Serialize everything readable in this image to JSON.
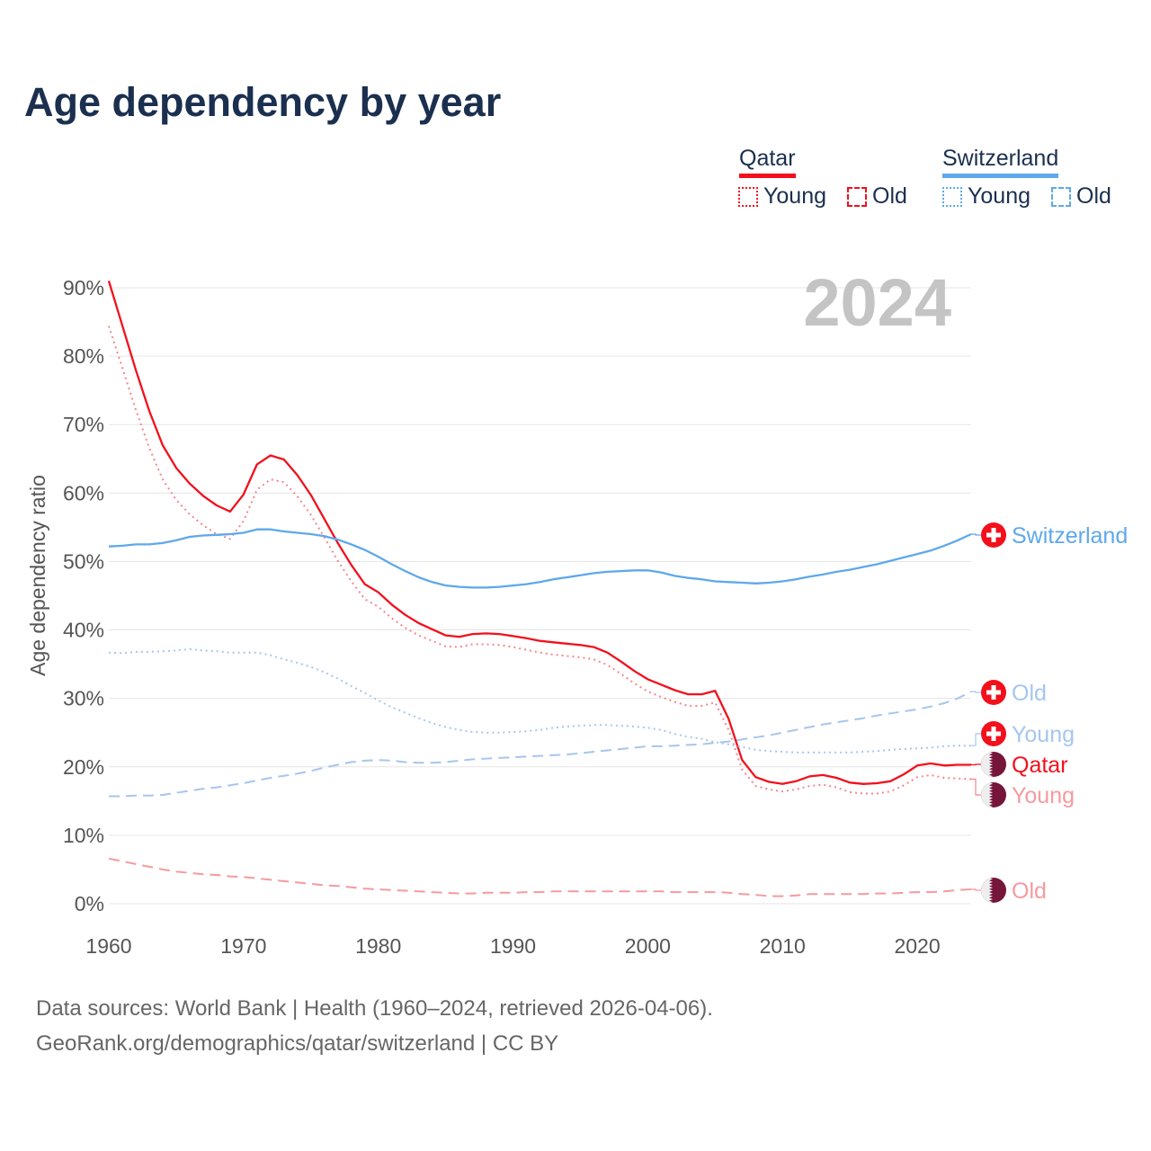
{
  "title": "Age dependency by year",
  "legend": {
    "countries": [
      {
        "name": "Qatar",
        "color": "#f2101c",
        "young_label": "Young",
        "old_label": "Old"
      },
      {
        "name": "Switzerland",
        "color": "#5ea8ec",
        "young_label": "Young",
        "old_label": "Old"
      }
    ]
  },
  "year_display": "2024",
  "footer": {
    "line1": "Data sources: World Bank | Health (1960–2024, retrieved 2026-04-06).",
    "line2": "GeoRank.org/demographics/qatar/switzerland | CC BY"
  },
  "end_labels": {
    "switzerland_total": "Switzerland",
    "switzerland_old": "Old",
    "switzerland_young": "Young",
    "qatar_total": "Qatar",
    "qatar_young": "Young",
    "qatar_old": "Old"
  },
  "chart_data": {
    "type": "line",
    "title": "Age dependency by year",
    "xlabel": "",
    "ylabel": "Age dependency ratio",
    "xlim": [
      1960,
      2024
    ],
    "ylim": [
      0,
      90
    ],
    "x_ticks": [
      "1960",
      "1970",
      "1980",
      "1990",
      "2000",
      "2010",
      "2020"
    ],
    "y_ticks": [
      "0%",
      "10%",
      "20%",
      "30%",
      "40%",
      "50%",
      "60%",
      "70%",
      "80%",
      "90%"
    ],
    "grid": true,
    "legend_position": "top-right",
    "x_start": 1960,
    "series": [
      {
        "name": "Qatar",
        "key": "qatar_total",
        "color": "#f2101c",
        "style": "solid",
        "values": [
          91.0,
          84.5,
          78.0,
          72.0,
          67.0,
          63.7,
          61.4,
          59.6,
          58.2,
          57.3,
          59.8,
          64.2,
          65.5,
          64.9,
          62.6,
          59.7,
          56.2,
          52.7,
          49.5,
          46.7,
          45.5,
          43.7,
          42.2,
          41.0,
          40.1,
          39.2,
          39.0,
          39.4,
          39.5,
          39.4,
          39.1,
          38.8,
          38.4,
          38.2,
          38.0,
          37.8,
          37.5,
          36.7,
          35.4,
          34.0,
          32.8,
          32.0,
          31.2,
          30.6,
          30.6,
          31.1,
          27.0,
          21.0,
          18.5,
          17.8,
          17.5,
          17.9,
          18.6,
          18.8,
          18.4,
          17.7,
          17.5,
          17.6,
          17.9,
          18.9,
          20.2,
          20.5,
          20.2,
          20.3,
          20.3
        ]
      },
      {
        "name": "Qatar Young",
        "key": "qatar_young",
        "color": "#f4858e",
        "style": "dotted",
        "values": [
          84.4,
          78.3,
          72.2,
          66.6,
          62.0,
          59.0,
          56.9,
          55.3,
          54.0,
          53.3,
          55.9,
          60.5,
          62.0,
          61.6,
          59.5,
          56.8,
          53.5,
          50.1,
          47.1,
          44.5,
          43.4,
          41.7,
          40.3,
          39.2,
          38.4,
          37.6,
          37.5,
          37.9,
          37.9,
          37.8,
          37.5,
          37.1,
          36.7,
          36.4,
          36.2,
          36.0,
          35.7,
          34.9,
          33.6,
          32.2,
          31.0,
          30.2,
          29.5,
          28.9,
          28.9,
          29.4,
          25.4,
          19.6,
          17.2,
          16.7,
          16.4,
          16.7,
          17.2,
          17.4,
          17.0,
          16.3,
          16.1,
          16.1,
          16.4,
          17.3,
          18.5,
          18.8,
          18.4,
          18.3,
          18.2
        ]
      },
      {
        "name": "Qatar Old",
        "key": "qatar_old",
        "color": "#f59a9f",
        "style": "dashed",
        "values": [
          6.6,
          6.2,
          5.8,
          5.4,
          5.0,
          4.7,
          4.5,
          4.3,
          4.2,
          4.0,
          3.9,
          3.7,
          3.5,
          3.3,
          3.1,
          2.9,
          2.7,
          2.6,
          2.4,
          2.2,
          2.1,
          2.0,
          1.9,
          1.8,
          1.7,
          1.6,
          1.5,
          1.5,
          1.6,
          1.6,
          1.6,
          1.7,
          1.7,
          1.8,
          1.8,
          1.8,
          1.8,
          1.8,
          1.8,
          1.8,
          1.8,
          1.8,
          1.7,
          1.7,
          1.7,
          1.7,
          1.6,
          1.4,
          1.3,
          1.1,
          1.1,
          1.2,
          1.4,
          1.4,
          1.4,
          1.4,
          1.4,
          1.5,
          1.5,
          1.6,
          1.7,
          1.7,
          1.8,
          2.0,
          2.1
        ]
      },
      {
        "name": "Switzerland",
        "key": "switzerland_total",
        "color": "#5ea8ec",
        "style": "solid",
        "values": [
          52.2,
          52.3,
          52.5,
          52.5,
          52.7,
          53.1,
          53.6,
          53.8,
          53.9,
          54.0,
          54.2,
          54.7,
          54.7,
          54.4,
          54.2,
          54.0,
          53.7,
          53.2,
          52.5,
          51.7,
          50.7,
          49.6,
          48.6,
          47.7,
          47.0,
          46.5,
          46.3,
          46.2,
          46.2,
          46.3,
          46.5,
          46.7,
          47.0,
          47.4,
          47.7,
          48.0,
          48.3,
          48.5,
          48.6,
          48.7,
          48.7,
          48.4,
          47.9,
          47.6,
          47.4,
          47.1,
          47.0,
          46.9,
          46.8,
          46.9,
          47.1,
          47.4,
          47.8,
          48.1,
          48.5,
          48.8,
          49.2,
          49.6,
          50.1,
          50.6,
          51.1,
          51.6,
          52.3,
          53.1,
          54.0
        ]
      },
      {
        "name": "Switzerland Young",
        "key": "switzerland_young",
        "color": "#a6c6ee",
        "style": "dotted",
        "values": [
          36.7,
          36.6,
          36.8,
          36.8,
          36.9,
          37.0,
          37.2,
          37.0,
          36.9,
          36.7,
          36.7,
          36.7,
          36.3,
          35.7,
          35.2,
          34.6,
          33.8,
          32.9,
          31.8,
          30.8,
          29.7,
          28.7,
          27.9,
          27.1,
          26.4,
          25.8,
          25.4,
          25.1,
          25.0,
          25.0,
          25.1,
          25.2,
          25.4,
          25.7,
          25.9,
          26.0,
          26.1,
          26.1,
          26.0,
          25.9,
          25.7,
          25.4,
          24.8,
          24.4,
          24.1,
          23.6,
          23.3,
          22.9,
          22.5,
          22.3,
          22.2,
          22.1,
          22.1,
          22.1,
          22.1,
          22.1,
          22.2,
          22.3,
          22.5,
          22.6,
          22.7,
          22.8,
          23.0,
          23.1,
          23.1
        ]
      },
      {
        "name": "Switzerland Old",
        "key": "switzerland_old",
        "color": "#a6c6ee",
        "style": "dashed",
        "values": [
          15.7,
          15.7,
          15.8,
          15.8,
          15.9,
          16.2,
          16.5,
          16.8,
          17.0,
          17.3,
          17.6,
          18.0,
          18.4,
          18.7,
          19.0,
          19.4,
          19.9,
          20.3,
          20.7,
          20.9,
          21.0,
          20.9,
          20.7,
          20.6,
          20.6,
          20.7,
          20.9,
          21.1,
          21.2,
          21.3,
          21.4,
          21.5,
          21.6,
          21.7,
          21.8,
          22.0,
          22.2,
          22.4,
          22.6,
          22.8,
          23.0,
          23.0,
          23.1,
          23.2,
          23.3,
          23.5,
          23.7,
          24.0,
          24.3,
          24.6,
          25.0,
          25.4,
          25.8,
          26.2,
          26.5,
          26.8,
          27.1,
          27.5,
          27.8,
          28.1,
          28.4,
          28.8,
          29.3,
          30.0,
          31.0
        ]
      }
    ]
  }
}
